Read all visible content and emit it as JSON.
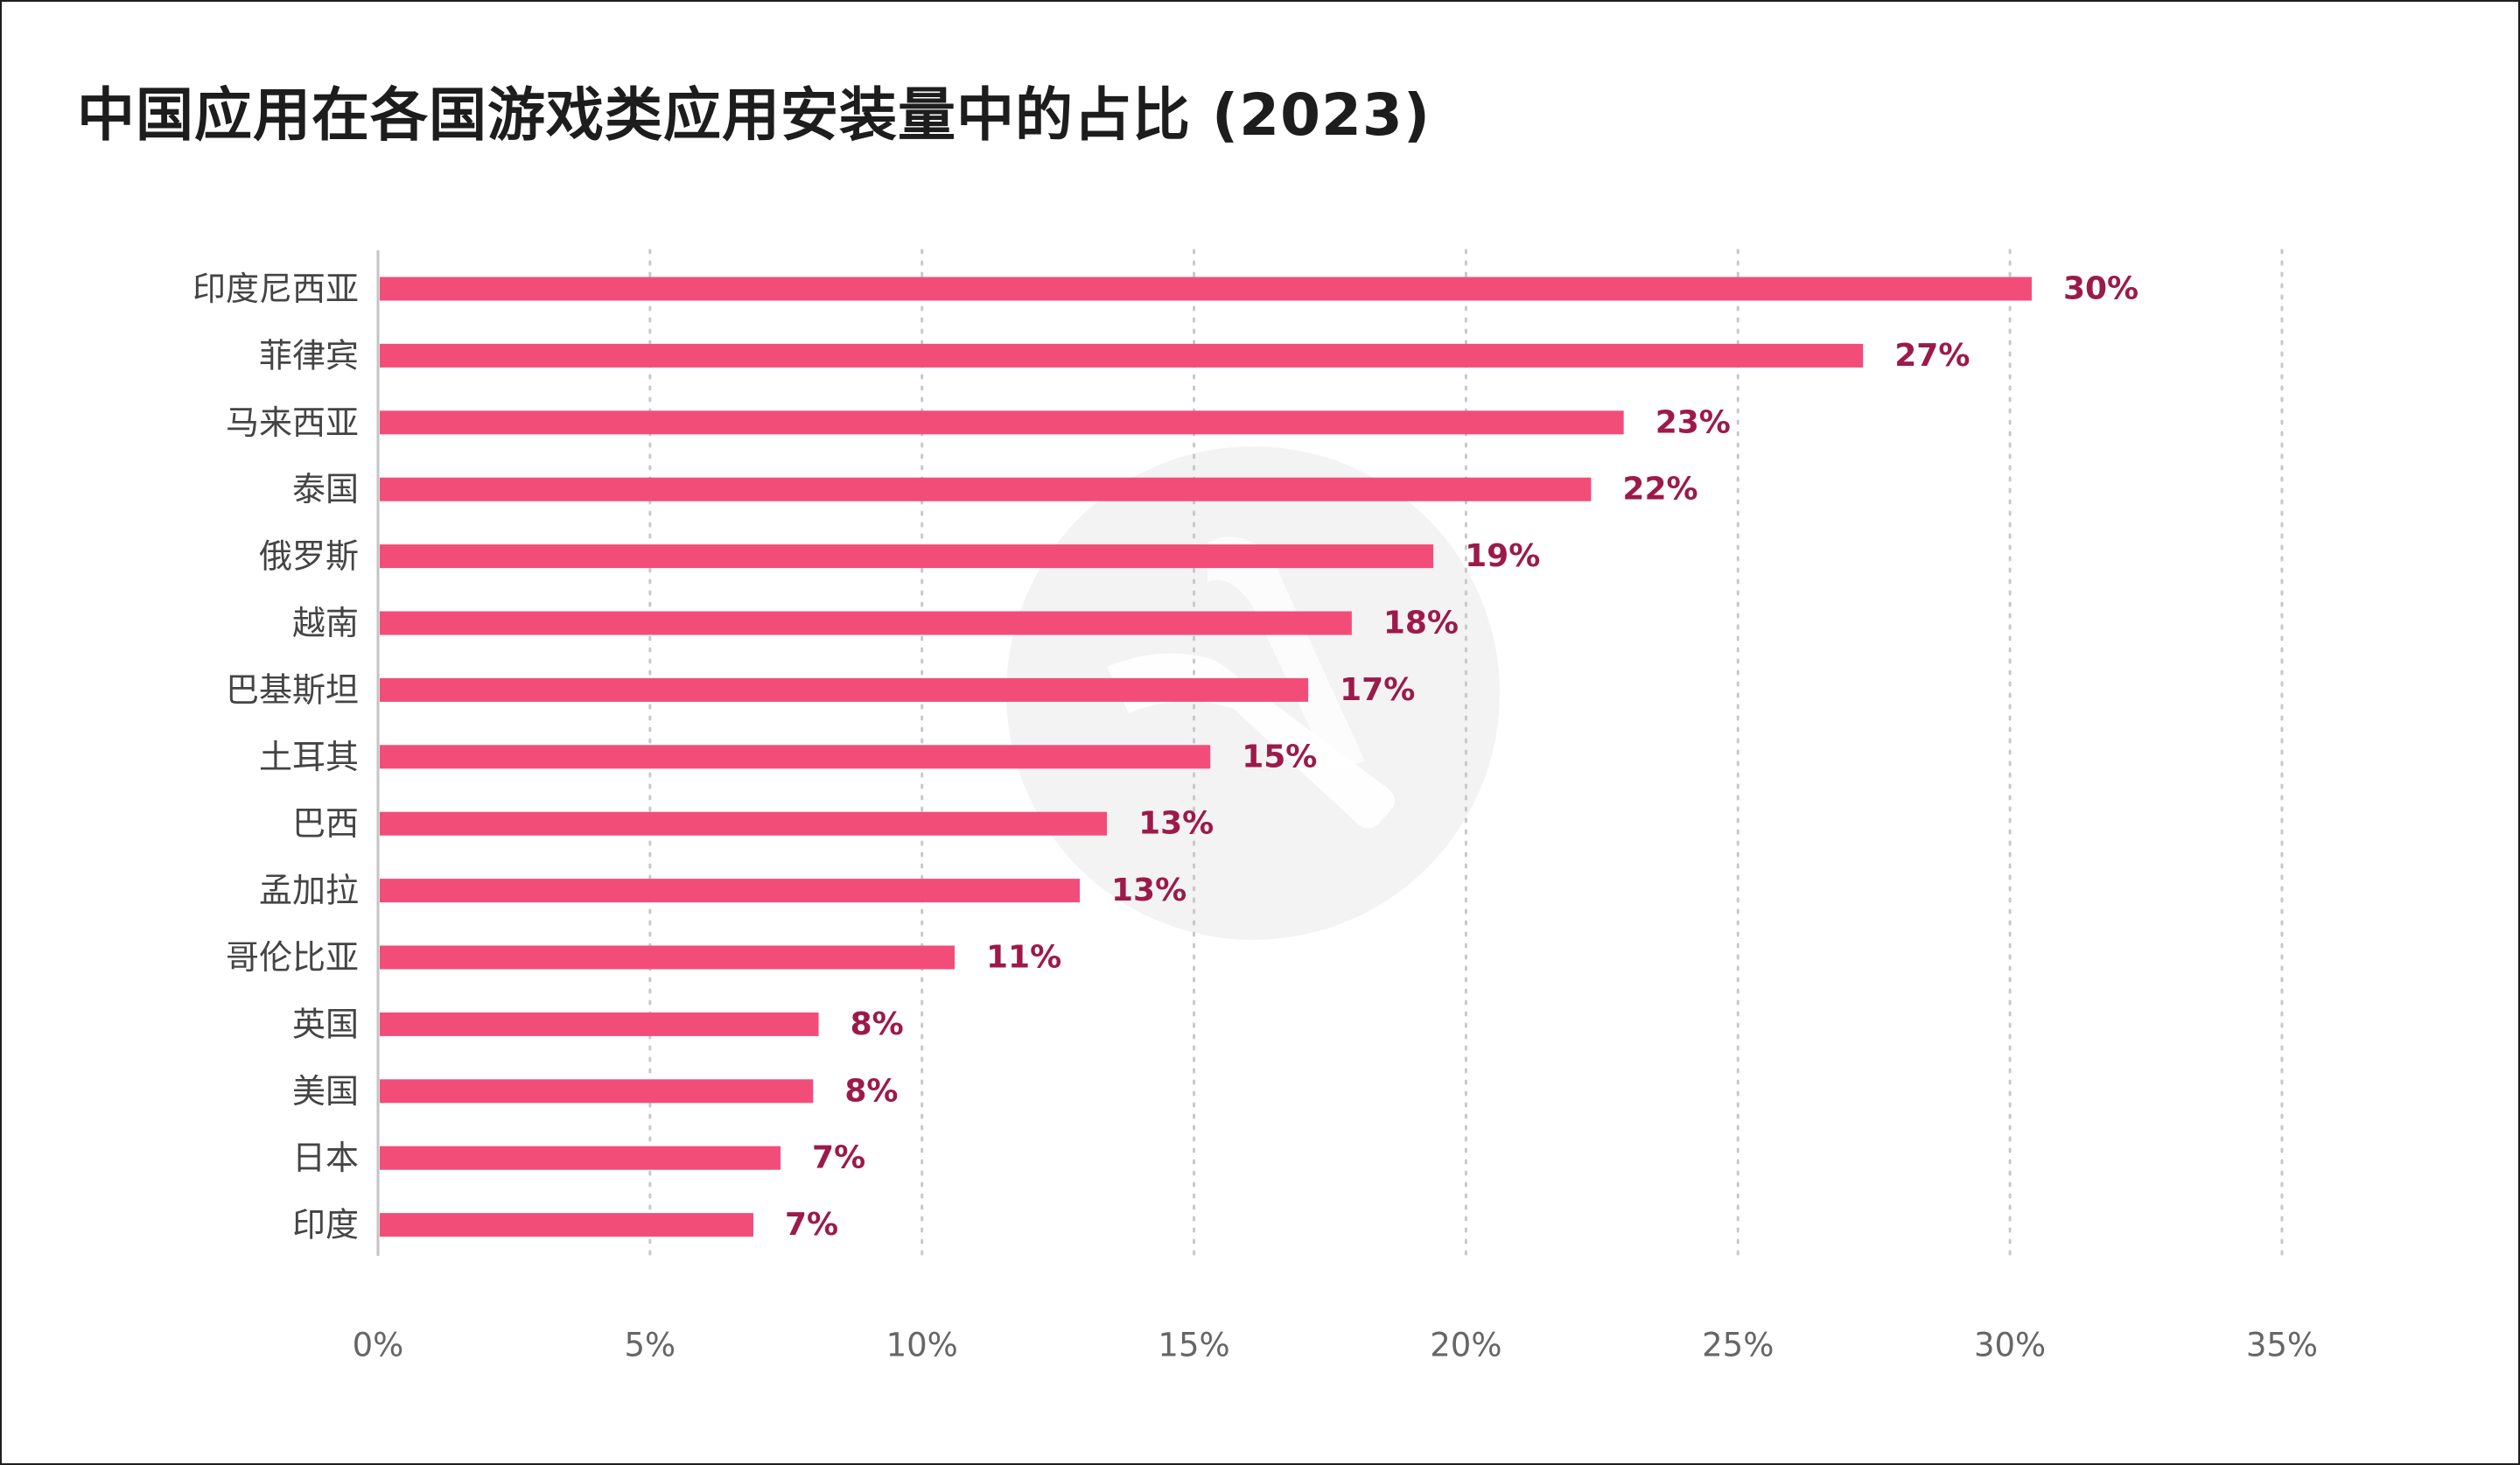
{
  "chart_data": {
    "type": "bar",
    "orientation": "horizontal",
    "title": "中国应用在各国游戏类应用安装量中的占比 (2023)",
    "categories": [
      "印度尼西亚",
      "菲律宾",
      "马来西亚",
      "泰国",
      "俄罗斯",
      "越南",
      "巴基斯坦",
      "土耳其",
      "巴西",
      "孟加拉",
      "哥伦比亚",
      "英国",
      "美国",
      "日本",
      "印度"
    ],
    "values": [
      30.4,
      27.3,
      22.9,
      22.3,
      19.4,
      17.9,
      17.1,
      15.3,
      13.4,
      12.9,
      10.6,
      8.1,
      8.0,
      7.4,
      6.9
    ],
    "value_labels": [
      "30%",
      "27%",
      "23%",
      "22%",
      "19%",
      "18%",
      "17%",
      "15%",
      "13%",
      "13%",
      "11%",
      "8%",
      "8%",
      "7%",
      "7%"
    ],
    "xlim": [
      0,
      35
    ],
    "xticks": [
      0,
      5,
      10,
      15,
      20,
      25,
      30,
      35
    ],
    "xtick_labels": [
      "0%",
      "5%",
      "10%",
      "15%",
      "20%",
      "25%",
      "30%",
      "35%"
    ],
    "xlabel": "",
    "ylabel": "",
    "grid": "vertical dotted",
    "legend": "none",
    "colors": {
      "bar": "#f24d78",
      "value_label": "#9c1a4a",
      "category_label": "#444444",
      "tick_label": "#666666",
      "gridline": "#c8c8c8",
      "axis": "#c4c4c4",
      "watermark": "#f2f2f2"
    }
  }
}
